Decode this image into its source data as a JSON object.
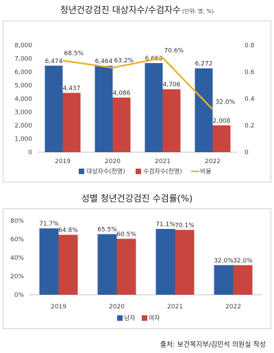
{
  "chart1": {
    "title": "청년건강검진 대상자수/수검자수",
    "unit": "(단위: 명, %)",
    "chart_data": {
      "type": "bar",
      "categories": [
        "2019",
        "2020",
        "2021",
        "2022"
      ],
      "series": [
        {
          "name": "대상자수(천명)",
          "values": [
            6474,
            6464,
            6663,
            6272
          ],
          "labels": [
            "6,474",
            "6,464",
            "6,663",
            "6,272"
          ],
          "color": "#2e5fa3",
          "axis": "left",
          "kind": "bar"
        },
        {
          "name": "수검자수(천명)",
          "values": [
            4437,
            4086,
            4706,
            2008
          ],
          "labels": [
            "4,437",
            "4,086",
            "4,706",
            "2,008"
          ],
          "color": "#c9453f",
          "axis": "left",
          "kind": "bar"
        },
        {
          "name": "비율",
          "values": [
            0.685,
            0.632,
            0.706,
            0.32
          ],
          "labels": [
            "68.5%",
            "63.2%",
            "70.6%",
            "32.0%"
          ],
          "color": "#e8b22a",
          "axis": "right",
          "kind": "line"
        }
      ],
      "ylim": [
        0,
        8000
      ],
      "yticks": [
        "0",
        "1,000",
        "2,000",
        "3,000",
        "4,000",
        "5,000",
        "6,000",
        "7,000",
        "8,000"
      ],
      "y2lim": [
        0,
        0.8
      ],
      "y2ticks": [
        "0",
        "0.2",
        "0.4",
        "0.6",
        "0.8"
      ],
      "legend_position": "bottom"
    }
  },
  "chart2": {
    "title": "성별 청년건강검진 수검률(%)",
    "chart_data": {
      "type": "bar",
      "categories": [
        "2019",
        "2020",
        "2021",
        "2022"
      ],
      "series": [
        {
          "name": "남자",
          "values": [
            71.7,
            65.5,
            71.1,
            32.0
          ],
          "labels": [
            "71.7%",
            "65.5%",
            "71.1%",
            "32.0%"
          ],
          "color": "#2e5fa3"
        },
        {
          "name": "여자",
          "values": [
            64.8,
            60.5,
            70.1,
            32.0
          ],
          "labels": [
            "64.8%",
            "60.5%",
            "70.1%",
            "32.0%"
          ],
          "color": "#c9453f"
        }
      ],
      "ylim": [
        0,
        80
      ],
      "yticks": [
        "0%",
        "20%",
        "40%",
        "60%",
        "80%"
      ],
      "legend_position": "bottom"
    }
  },
  "source": "출처: 보건복지부/김민석 의원실 작성"
}
